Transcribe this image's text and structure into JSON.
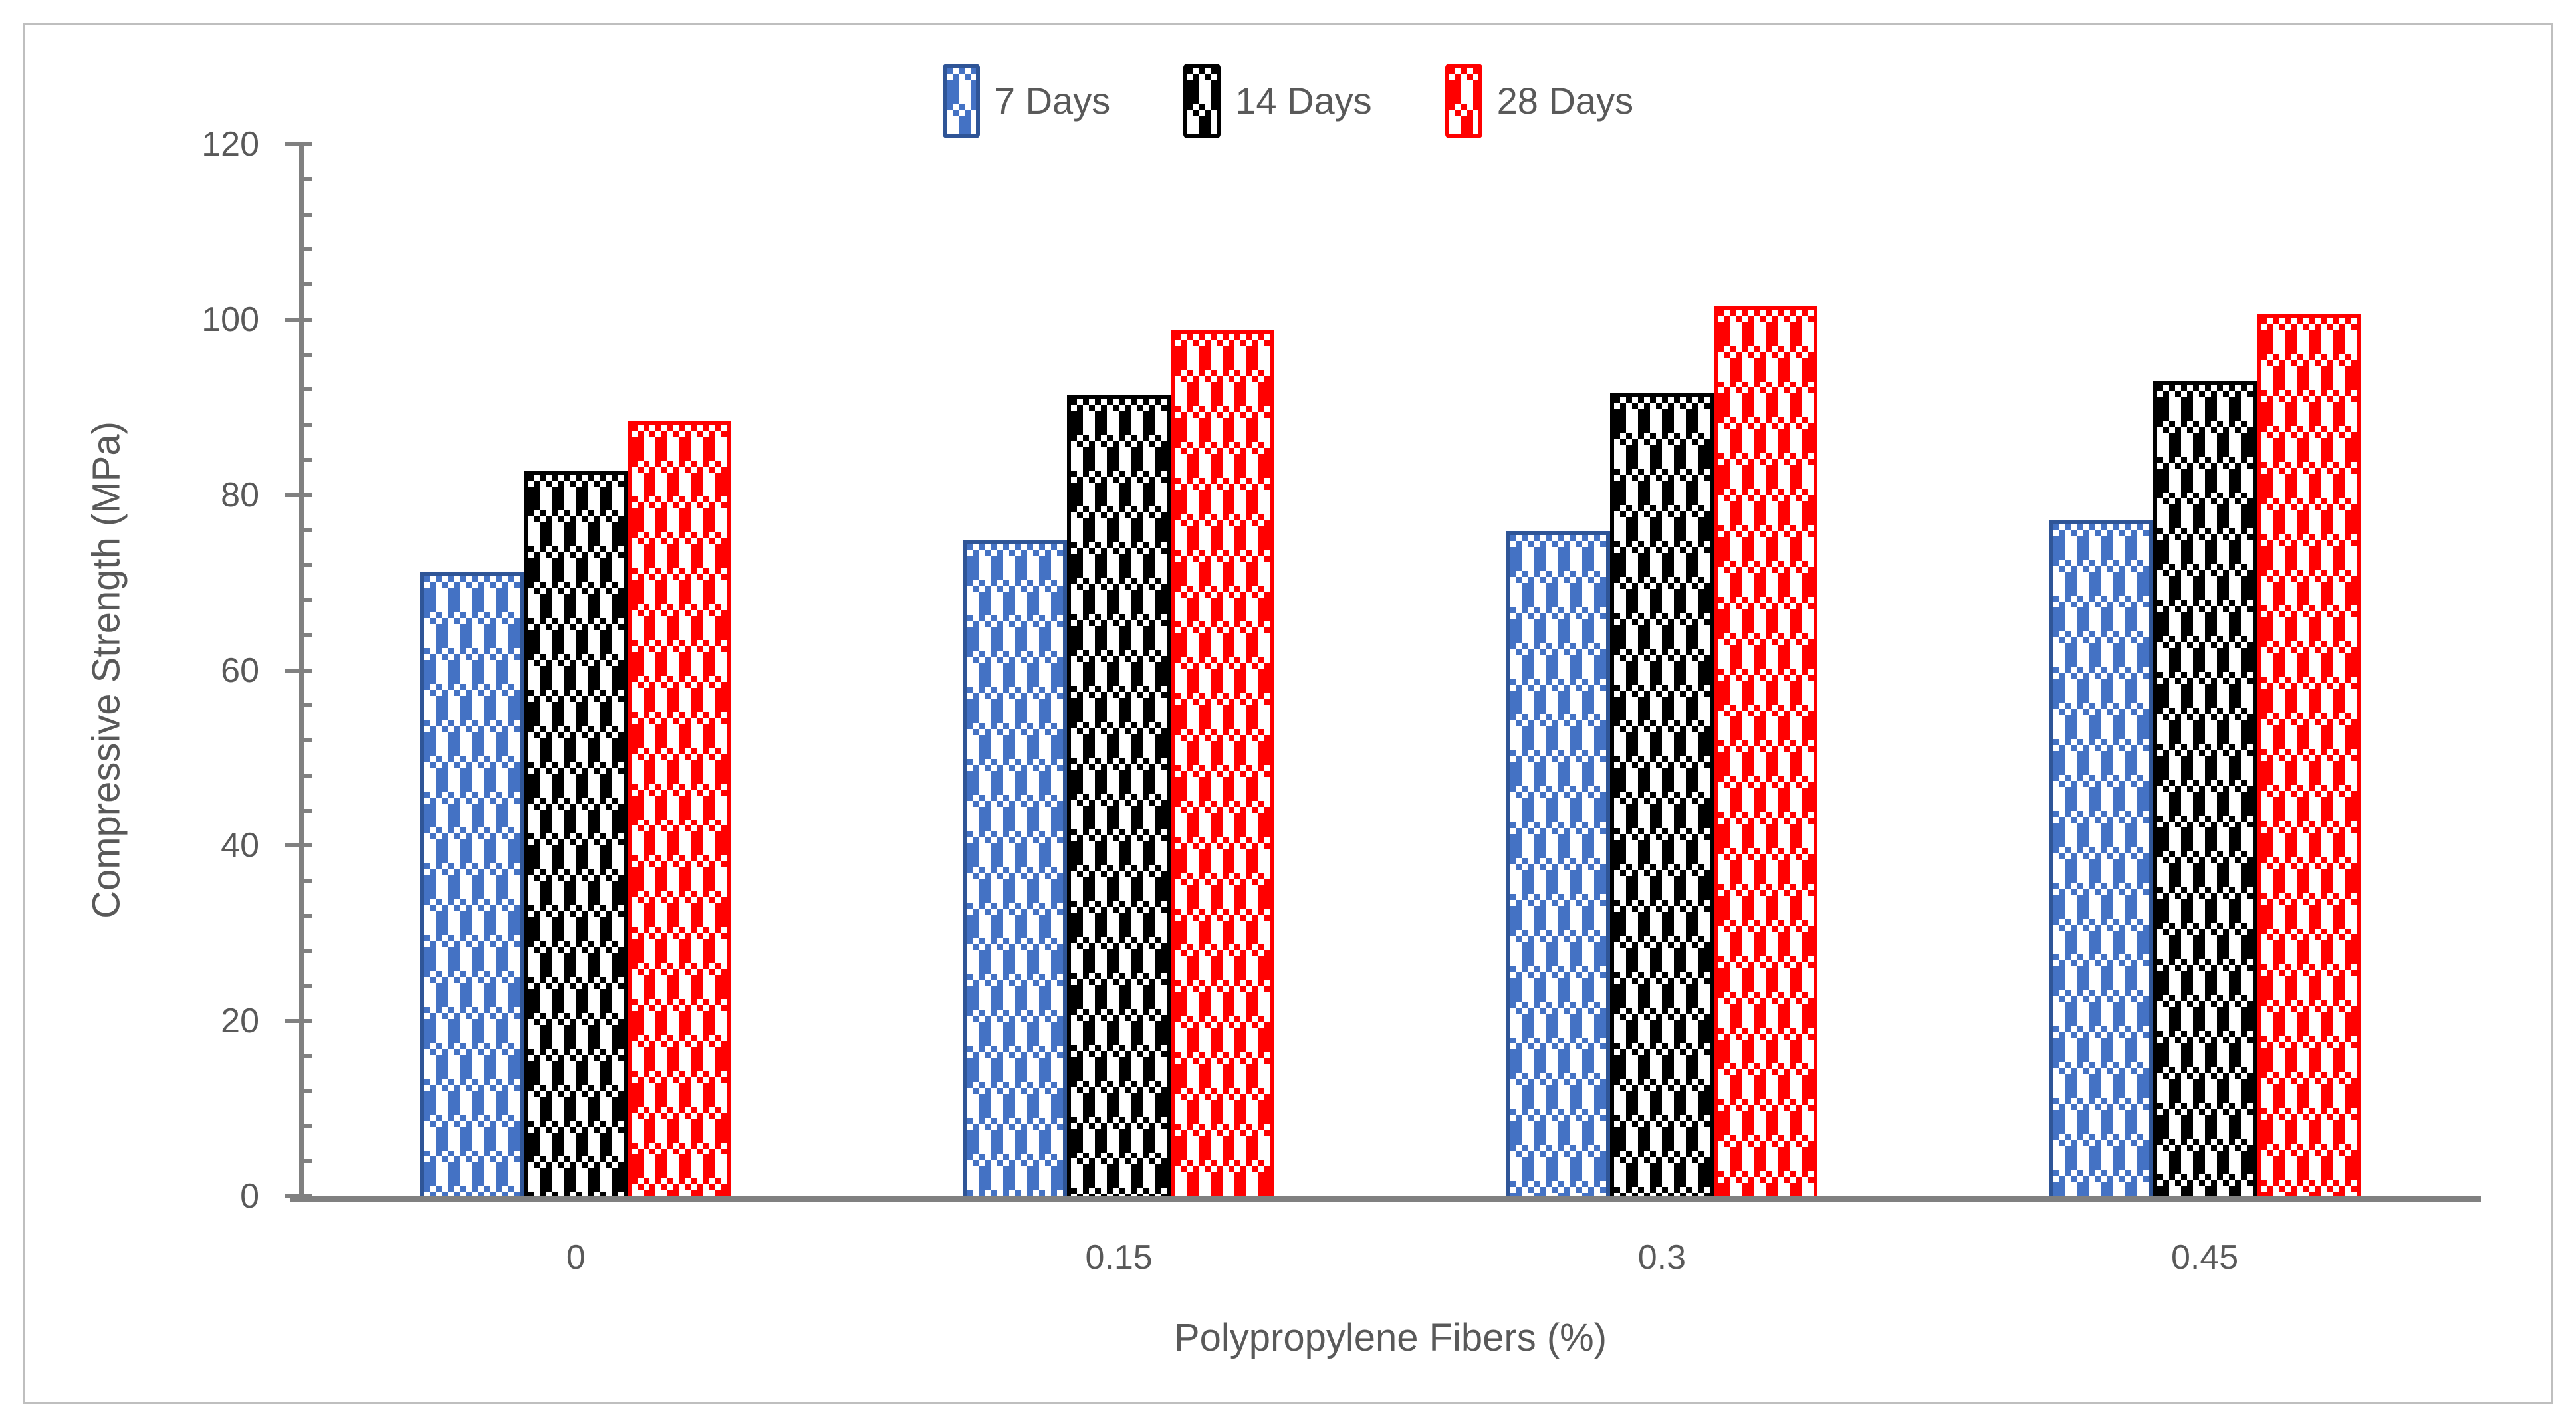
{
  "figure": {
    "background": "#FFFFFF",
    "frame_color": "#BFBFBF",
    "axis_color": "#808080",
    "text_color": "#595959"
  },
  "chart_data": {
    "type": "bar",
    "title": "",
    "categories": [
      "0",
      "0.15",
      "0.3",
      "0.45"
    ],
    "series": [
      {
        "name": "7 Days",
        "color": "#4472C4",
        "border": "#2F5597",
        "values": [
          71.2,
          74.9,
          75.9,
          77.2
        ]
      },
      {
        "name": "14 Days",
        "color": "#000000",
        "border": "#000000",
        "values": [
          82.8,
          91.4,
          91.6,
          93.0
        ]
      },
      {
        "name": "28 Days",
        "color": "#FF0000",
        "border": "#FF0000",
        "values": [
          88.5,
          98.8,
          101.6,
          100.6
        ]
      }
    ],
    "xlabel": "Polypropylene Fibers (%)",
    "ylabel": "Compressive Strength (MPa)",
    "ylim": [
      0,
      120
    ],
    "y_major_ticks": [
      0,
      20,
      40,
      60,
      80,
      100,
      120
    ],
    "y_minor_step": 4,
    "grid": false,
    "legend_position": "top center",
    "fill_pattern": "checker-gingham"
  }
}
